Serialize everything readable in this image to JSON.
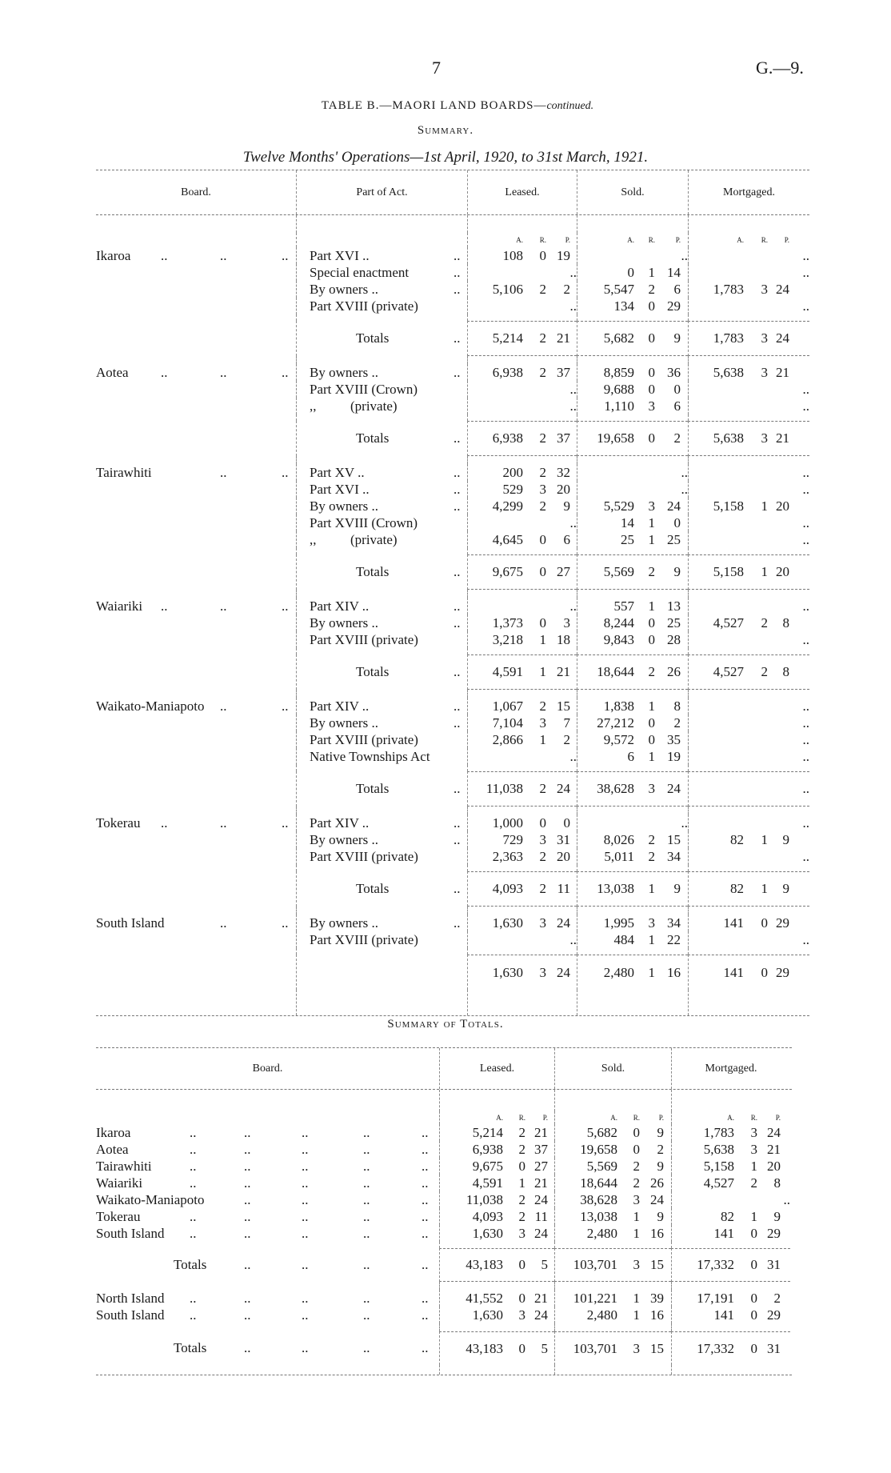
{
  "page": {
    "number": "7",
    "reference": "G.—9.",
    "title": "TABLE B.—MAORI LAND BOARDS—",
    "title_suffix": "continued.",
    "section": "Summary.",
    "subtitle": "Twelve Months' Operations—1st April, 1920, to 31st March, 1921."
  },
  "symbols": {
    "nil": "..",
    "leader": "..",
    "a": "A.",
    "r": "R.",
    "p": "P."
  },
  "table1": {
    "headers": {
      "board": "Board.",
      "part": "Part of Act.",
      "leased": "Leased.",
      "sold": "Sold.",
      "mortgaged": "Mortgaged."
    },
    "totals_label": "Totals",
    "boards": [
      {
        "name": "Ikaroa",
        "rows": [
          {
            "part": "Part XVI ..",
            "leased": [
              "108",
              "0",
              "19"
            ],
            "sold": null,
            "mortgaged": null
          },
          {
            "part": "Special enactment",
            "leased": null,
            "sold": [
              "0",
              "1",
              "14"
            ],
            "mortgaged": null
          },
          {
            "part": "By owners ..",
            "leased": [
              "5,106",
              "2",
              "2"
            ],
            "sold": [
              "5,547",
              "2",
              "6"
            ],
            "mortgaged": [
              "1,783",
              "3",
              "24"
            ]
          },
          {
            "part": "Part XVIII (private)",
            "leased": null,
            "sold": [
              "134",
              "0",
              "29"
            ],
            "mortgaged": null
          }
        ],
        "totals": {
          "leased": [
            "5,214",
            "2",
            "21"
          ],
          "sold": [
            "5,682",
            "0",
            "9"
          ],
          "mortgaged": [
            "1,783",
            "3",
            "24"
          ]
        }
      },
      {
        "name": "Aotea",
        "rows": [
          {
            "part": "By owners ..",
            "leased": [
              "6,938",
              "2",
              "37"
            ],
            "sold": [
              "8,859",
              "0",
              "36"
            ],
            "mortgaged": [
              "5,638",
              "3",
              "21"
            ]
          },
          {
            "part": "Part XVIII (Crown)",
            "leased": null,
            "sold": [
              "9,688",
              "0",
              "0"
            ],
            "mortgaged": null
          },
          {
            "part": ",,          (private)",
            "leased": null,
            "sold": [
              "1,110",
              "3",
              "6"
            ],
            "mortgaged": null
          }
        ],
        "totals": {
          "leased": [
            "6,938",
            "2",
            "37"
          ],
          "sold": [
            "19,658",
            "0",
            "2"
          ],
          "mortgaged": [
            "5,638",
            "3",
            "21"
          ]
        }
      },
      {
        "name": "Tairawhiti",
        "rows": [
          {
            "part": "Part XV ..",
            "leased": [
              "200",
              "2",
              "32"
            ],
            "sold": null,
            "mortgaged": null
          },
          {
            "part": "Part XVI ..",
            "leased": [
              "529",
              "3",
              "20"
            ],
            "sold": null,
            "mortgaged": null
          },
          {
            "part": "By owners ..",
            "leased": [
              "4,299",
              "2",
              "9"
            ],
            "sold": [
              "5,529",
              "3",
              "24"
            ],
            "mortgaged": [
              "5,158",
              "1",
              "20"
            ]
          },
          {
            "part": "Part XVIII (Crown)",
            "leased": null,
            "sold": [
              "14",
              "1",
              "0"
            ],
            "mortgaged": null
          },
          {
            "part": ",,          (private)",
            "leased": [
              "4,645",
              "0",
              "6"
            ],
            "sold": [
              "25",
              "1",
              "25"
            ],
            "mortgaged": null
          }
        ],
        "totals": {
          "leased": [
            "9,675",
            "0",
            "27"
          ],
          "sold": [
            "5,569",
            "2",
            "9"
          ],
          "mortgaged": [
            "5,158",
            "1",
            "20"
          ]
        }
      },
      {
        "name": "Waiariki",
        "rows": [
          {
            "part": "Part XIV ..",
            "leased": null,
            "sold": [
              "557",
              "1",
              "13"
            ],
            "mortgaged": null
          },
          {
            "part": "By owners ..",
            "leased": [
              "1,373",
              "0",
              "3"
            ],
            "sold": [
              "8,244",
              "0",
              "25"
            ],
            "mortgaged": [
              "4,527",
              "2",
              "8"
            ]
          },
          {
            "part": "Part XVIII (private)",
            "leased": [
              "3,218",
              "1",
              "18"
            ],
            "sold": [
              "9,843",
              "0",
              "28"
            ],
            "mortgaged": null
          }
        ],
        "totals": {
          "leased": [
            "4,591",
            "1",
            "21"
          ],
          "sold": [
            "18,644",
            "2",
            "26"
          ],
          "mortgaged": [
            "4,527",
            "2",
            "8"
          ]
        }
      },
      {
        "name": "Waikato-Maniapoto",
        "rows": [
          {
            "part": "Part XIV ..",
            "leased": [
              "1,067",
              "2",
              "15"
            ],
            "sold": [
              "1,838",
              "1",
              "8"
            ],
            "mortgaged": null
          },
          {
            "part": "By owners ..",
            "leased": [
              "7,104",
              "3",
              "7"
            ],
            "sold": [
              "27,212",
              "0",
              "2"
            ],
            "mortgaged": null
          },
          {
            "part": "Part XVIII (private)",
            "leased": [
              "2,866",
              "1",
              "2"
            ],
            "sold": [
              "9,572",
              "0",
              "35"
            ],
            "mortgaged": null
          },
          {
            "part": "Native Townships Act",
            "leased": null,
            "sold": [
              "6",
              "1",
              "19"
            ],
            "mortgaged": null
          }
        ],
        "totals": {
          "leased": [
            "11,038",
            "2",
            "24"
          ],
          "sold": [
            "38,628",
            "3",
            "24"
          ],
          "mortgaged": null
        }
      },
      {
        "name": "Tokerau",
        "rows": [
          {
            "part": "Part XIV ..",
            "leased": [
              "1,000",
              "0",
              "0"
            ],
            "sold": null,
            "mortgaged": null
          },
          {
            "part": "By owners ..",
            "leased": [
              "729",
              "3",
              "31"
            ],
            "sold": [
              "8,026",
              "2",
              "15"
            ],
            "mortgaged": [
              "82",
              "1",
              "9"
            ]
          },
          {
            "part": "Part XVIII (private)",
            "leased": [
              "2,363",
              "2",
              "20"
            ],
            "sold": [
              "5,011",
              "2",
              "34"
            ],
            "mortgaged": null
          }
        ],
        "totals": {
          "leased": [
            "4,093",
            "2",
            "11"
          ],
          "sold": [
            "13,038",
            "1",
            "9"
          ],
          "mortgaged": [
            "82",
            "1",
            "9"
          ]
        }
      },
      {
        "name": "South Island",
        "rows": [
          {
            "part": "By owners ..",
            "leased": [
              "1,630",
              "3",
              "24"
            ],
            "sold": [
              "1,995",
              "3",
              "34"
            ],
            "mortgaged": [
              "141",
              "0",
              "29"
            ]
          },
          {
            "part": "Part XVIII (private)",
            "leased": null,
            "sold": [
              "484",
              "1",
              "22"
            ],
            "mortgaged": null
          }
        ],
        "totals": {
          "leased": [
            "1,630",
            "3",
            "24"
          ],
          "sold": [
            "2,480",
            "1",
            "16"
          ],
          "mortgaged": [
            "141",
            "0",
            "29"
          ]
        },
        "totals_unlabelled": true
      }
    ]
  },
  "table2": {
    "title": "Summary of Totals.",
    "headers": {
      "board": "Board.",
      "leased": "Leased.",
      "sold": "Sold.",
      "mortgaged": "Mortgaged."
    },
    "rows": [
      {
        "board": "Ikaroa",
        "leased": [
          "5,214",
          "2",
          "21"
        ],
        "sold": [
          "5,682",
          "0",
          "9"
        ],
        "mortgaged": [
          "1,783",
          "3",
          "24"
        ]
      },
      {
        "board": "Aotea",
        "leased": [
          "6,938",
          "2",
          "37"
        ],
        "sold": [
          "19,658",
          "0",
          "2"
        ],
        "mortgaged": [
          "5,638",
          "3",
          "21"
        ]
      },
      {
        "board": "Tairawhiti",
        "leased": [
          "9,675",
          "0",
          "27"
        ],
        "sold": [
          "5,569",
          "2",
          "9"
        ],
        "mortgaged": [
          "5,158",
          "1",
          "20"
        ]
      },
      {
        "board": "Waiariki",
        "leased": [
          "4,591",
          "1",
          "21"
        ],
        "sold": [
          "18,644",
          "2",
          "26"
        ],
        "mortgaged": [
          "4,527",
          "2",
          "8"
        ]
      },
      {
        "board": "Waikato-Maniapoto",
        "leased": [
          "11,038",
          "2",
          "24"
        ],
        "sold": [
          "38,628",
          "3",
          "24"
        ],
        "mortgaged": null
      },
      {
        "board": "Tokerau",
        "leased": [
          "4,093",
          "2",
          "11"
        ],
        "sold": [
          "13,038",
          "1",
          "9"
        ],
        "mortgaged": [
          "82",
          "1",
          "9"
        ]
      },
      {
        "board": "South Island",
        "leased": [
          "1,630",
          "3",
          "24"
        ],
        "sold": [
          "2,480",
          "1",
          "16"
        ],
        "mortgaged": [
          "141",
          "0",
          "29"
        ]
      }
    ],
    "totals": {
      "label": "Totals",
      "leased": [
        "43,183",
        "0",
        "5"
      ],
      "sold": [
        "103,701",
        "3",
        "15"
      ],
      "mortgaged": [
        "17,332",
        "0",
        "31"
      ]
    },
    "islands": [
      {
        "board": "North Island",
        "leased": [
          "41,552",
          "0",
          "21"
        ],
        "sold": [
          "101,221",
          "1",
          "39"
        ],
        "mortgaged": [
          "17,191",
          "0",
          "2"
        ]
      },
      {
        "board": "South Island",
        "leased": [
          "1,630",
          "3",
          "24"
        ],
        "sold": [
          "2,480",
          "1",
          "16"
        ],
        "mortgaged": [
          "141",
          "0",
          "29"
        ]
      }
    ],
    "grand_totals": {
      "label": "Totals",
      "leased": [
        "43,183",
        "0",
        "5"
      ],
      "sold": [
        "103,701",
        "3",
        "15"
      ],
      "mortgaged": [
        "17,332",
        "0",
        "31"
      ]
    }
  }
}
